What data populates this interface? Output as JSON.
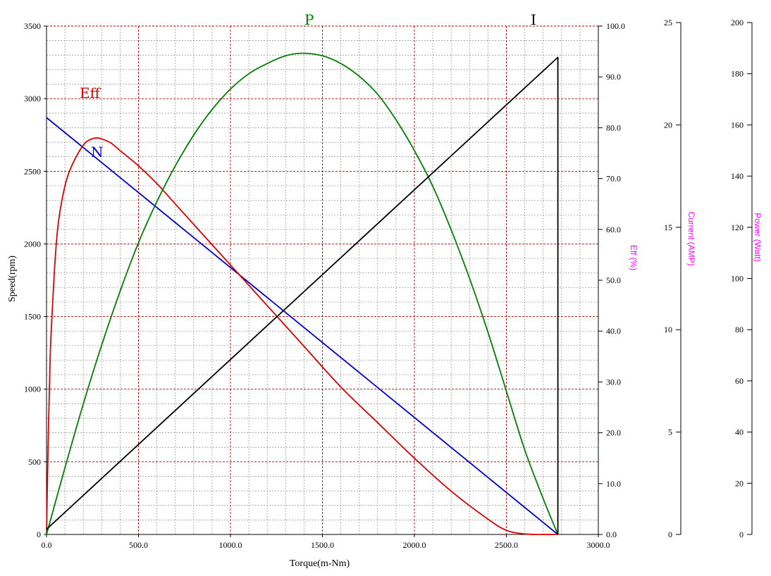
{
  "chart_data": {
    "type": "line",
    "xlabel": "Torque(m-Nm)",
    "ylabel": "Speed(rpm)",
    "xlim": [
      0,
      3000
    ],
    "ylim": [
      0,
      3500
    ],
    "grid": true,
    "x_ticks": [
      "0.0",
      "500.0",
      "1000.0",
      "1500.0",
      "2000.0",
      "2500.0",
      "3000.0"
    ],
    "y_ticks": [
      "0",
      "500",
      "1000",
      "1500",
      "2000",
      "2500",
      "3000",
      "3500"
    ],
    "right_axes": [
      {
        "label": "Eff (%)",
        "range": [
          0,
          100
        ],
        "ticks": [
          "0.0",
          "10.0",
          "20.0",
          "30.0",
          "40.0",
          "50.0",
          "60.0",
          "70.0",
          "80.0",
          "90.0",
          "100.0"
        ],
        "color": "#ff00ff"
      },
      {
        "label": "Current (AMP)",
        "range": [
          0,
          25
        ],
        "ticks": [
          "0",
          "5",
          "10",
          "15",
          "20",
          "25"
        ],
        "color": "#ff00ff"
      },
      {
        "label": "Power (Watt)",
        "range": [
          0,
          200
        ],
        "ticks": [
          "0",
          "20",
          "40",
          "60",
          "80",
          "100",
          "120",
          "140",
          "160",
          "180",
          "200"
        ],
        "color": "#ff00ff"
      }
    ],
    "series": [
      {
        "name": "N",
        "axis": "speed",
        "color": "#0000cc",
        "x": [
          0,
          2780
        ],
        "y": [
          2870,
          0
        ]
      },
      {
        "name": "Eff",
        "axis": "eff",
        "color": "#dd0000",
        "x": [
          0,
          10,
          20,
          30,
          45,
          60,
          80,
          100,
          120,
          150,
          180,
          210,
          240,
          270,
          300,
          350,
          400,
          500,
          600,
          700,
          800,
          900,
          1000,
          1200,
          1400,
          1600,
          1800,
          2000,
          2200,
          2400,
          2500,
          2600,
          2700,
          2780
        ],
        "y": [
          0,
          20,
          35,
          43,
          53,
          60,
          65,
          68.5,
          71,
          73.5,
          75.5,
          77,
          77.7,
          78,
          77.8,
          77,
          75.5,
          72.5,
          69,
          65,
          61,
          57,
          53,
          45,
          37,
          29,
          22,
          15,
          8.5,
          3,
          0.8,
          0.1,
          0,
          0
        ]
      },
      {
        "name": "P",
        "axis": "power",
        "color": "#008000",
        "x": [
          0,
          100,
          200,
          300,
          400,
          500,
          600,
          700,
          800,
          900,
          1000,
          1100,
          1200,
          1300,
          1390,
          1500,
          1600,
          1700,
          1800,
          1900,
          2000,
          2100,
          2200,
          2300,
          2400,
          2500,
          2600,
          2700,
          2780
        ],
        "y": [
          0,
          26,
          51,
          74,
          95,
          114,
          130,
          144,
          156,
          166,
          174,
          180,
          184,
          187,
          188,
          187,
          184,
          179,
          172,
          162,
          150,
          136,
          119,
          100,
          79,
          56,
          33,
          14,
          0
        ]
      },
      {
        "name": "I",
        "axis": "current",
        "color": "#000000",
        "x": [
          0,
          2780,
          2780
        ],
        "y": [
          0.25,
          23.3,
          0
        ]
      }
    ]
  }
}
